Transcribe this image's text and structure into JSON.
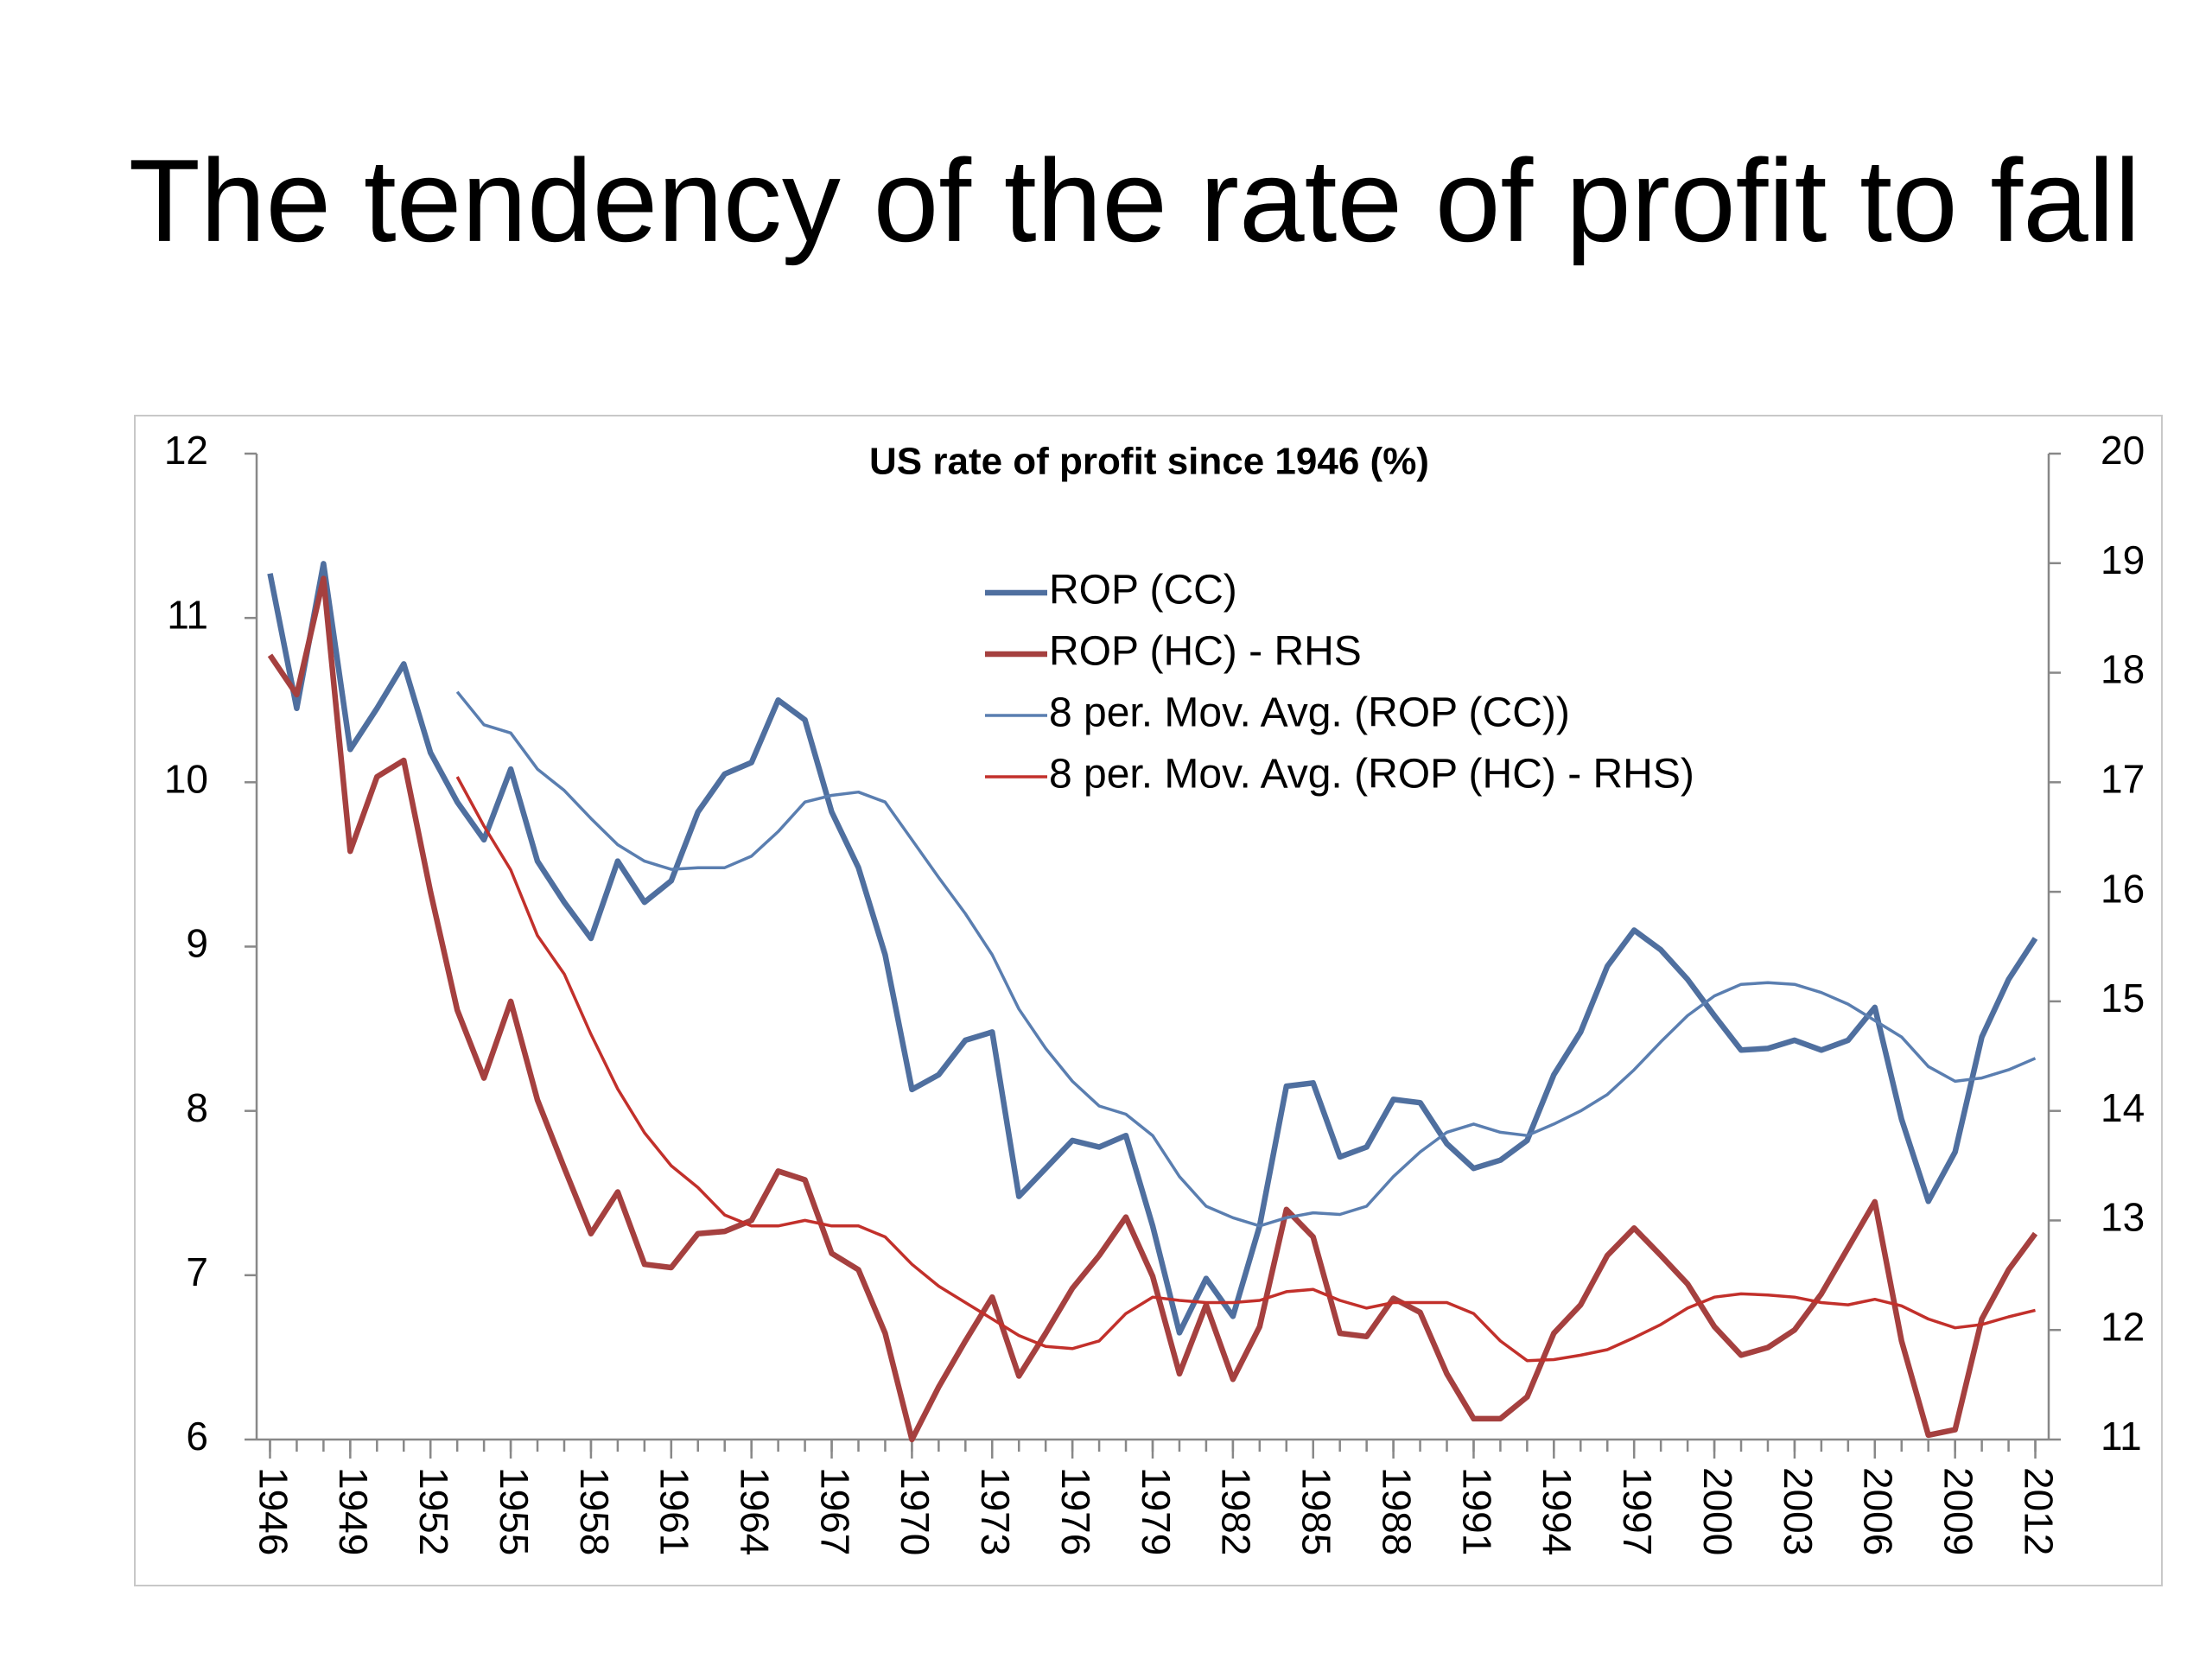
{
  "slide_title": "The tendency of the rate of profit to fall",
  "chart_data": {
    "type": "line",
    "title": "US rate of profit since 1946 (%)",
    "x": [
      1946,
      1947,
      1948,
      1949,
      1950,
      1951,
      1952,
      1953,
      1954,
      1955,
      1956,
      1957,
      1958,
      1959,
      1960,
      1961,
      1962,
      1963,
      1964,
      1965,
      1966,
      1967,
      1968,
      1969,
      1970,
      1971,
      1972,
      1973,
      1974,
      1975,
      1976,
      1977,
      1978,
      1979,
      1980,
      1981,
      1982,
      1983,
      1984,
      1985,
      1986,
      1987,
      1988,
      1989,
      1990,
      1991,
      1992,
      1993,
      1994,
      1995,
      1996,
      1997,
      1998,
      1999,
      2000,
      2001,
      2002,
      2003,
      2004,
      2005,
      2006,
      2007,
      2008,
      2009,
      2010,
      2011,
      2012
    ],
    "xlim": [
      1945.5,
      2012.5
    ],
    "xticks": [
      1946,
      1949,
      1952,
      1955,
      1958,
      1961,
      1964,
      1967,
      1970,
      1973,
      1976,
      1979,
      1982,
      1985,
      1988,
      1991,
      1994,
      1997,
      2000,
      2003,
      2006,
      2009,
      2012
    ],
    "ylim": [
      6,
      12
    ],
    "yticks": [
      6,
      7,
      8,
      9,
      10,
      11,
      12
    ],
    "y2lim": [
      11,
      20
    ],
    "y2ticks": [
      11,
      12,
      13,
      14,
      15,
      16,
      17,
      18,
      19,
      20
    ],
    "grid": false,
    "legend": "top",
    "series": [
      {
        "name": "ROP (CC)",
        "color": "#4f6f9f",
        "width": "thick",
        "axis": "y",
        "values": [
          11.27,
          10.45,
          11.33,
          10.2,
          10.45,
          10.72,
          10.18,
          9.88,
          9.65,
          10.08,
          9.52,
          9.27,
          9.05,
          9.52,
          9.27,
          9.4,
          9.82,
          10.05,
          10.12,
          10.5,
          10.38,
          9.82,
          9.48,
          8.95,
          8.13,
          8.22,
          8.43,
          8.48,
          7.48,
          7.65,
          7.82,
          7.78,
          7.85,
          7.3,
          6.65,
          6.98,
          6.75,
          7.3,
          8.15,
          8.17,
          7.72,
          7.78,
          8.07,
          8.05,
          7.8,
          7.65,
          7.7,
          7.82,
          8.22,
          8.48,
          8.88,
          9.1,
          8.98,
          8.8,
          8.58,
          8.37,
          8.38,
          8.43,
          8.37,
          8.43,
          8.63,
          7.95,
          7.45,
          7.75,
          8.45,
          8.8,
          9.05
        ]
      },
      {
        "name": "ROP (HC) - RHS",
        "color": "#a5403f",
        "width": "thick",
        "axis": "y2",
        "values": [
          18.16,
          17.8,
          18.86,
          16.37,
          17.05,
          17.2,
          16.0,
          14.92,
          14.3,
          15.0,
          14.1,
          13.48,
          12.88,
          13.26,
          12.6,
          12.57,
          12.88,
          12.9,
          13.0,
          13.45,
          13.37,
          12.7,
          12.55,
          11.97,
          11.0,
          11.48,
          11.9,
          12.3,
          11.58,
          11.97,
          12.38,
          12.68,
          13.03,
          12.49,
          11.6,
          12.23,
          11.55,
          12.03,
          13.1,
          12.85,
          11.97,
          11.94,
          12.29,
          12.16,
          11.6,
          11.19,
          11.19,
          11.39,
          11.97,
          12.23,
          12.68,
          12.93,
          12.68,
          12.42,
          12.03,
          11.77,
          11.84,
          12.0,
          12.33,
          12.75,
          13.17,
          11.9,
          11.04,
          11.09,
          12.1,
          12.55,
          12.88
        ]
      },
      {
        "name": "8 per. Mov. Avg. (ROP (CC))",
        "color": "#5a7eb0",
        "width": "thin",
        "axis": "y",
        "values": [
          null,
          null,
          null,
          null,
          null,
          null,
          null,
          10.55,
          10.35,
          10.3,
          10.08,
          9.95,
          9.78,
          9.62,
          9.52,
          9.47,
          9.48,
          9.48,
          9.55,
          9.7,
          9.88,
          9.92,
          9.94,
          9.88,
          9.65,
          9.42,
          9.2,
          8.95,
          8.62,
          8.38,
          8.18,
          8.03,
          7.98,
          7.85,
          7.6,
          7.42,
          7.35,
          7.3,
          7.35,
          7.38,
          7.37,
          7.42,
          7.6,
          7.75,
          7.87,
          7.92,
          7.87,
          7.85,
          7.92,
          8.0,
          8.1,
          8.25,
          8.42,
          8.58,
          8.7,
          8.77,
          8.78,
          8.77,
          8.72,
          8.65,
          8.55,
          8.45,
          8.27,
          8.18,
          8.2,
          8.25,
          8.32
        ]
      },
      {
        "name": "8 per. Mov. Avg. (ROP (HC) - RHS)",
        "color": "#c2302b",
        "width": "thin",
        "axis": "y2",
        "values": [
          null,
          null,
          null,
          null,
          null,
          null,
          null,
          17.05,
          16.6,
          16.2,
          15.6,
          15.25,
          14.7,
          14.2,
          13.8,
          13.5,
          13.3,
          13.05,
          12.95,
          12.95,
          13.0,
          12.95,
          12.95,
          12.85,
          12.6,
          12.4,
          12.25,
          12.1,
          11.95,
          11.85,
          11.83,
          11.9,
          12.15,
          12.3,
          12.27,
          12.25,
          12.25,
          12.27,
          12.35,
          12.37,
          12.27,
          12.2,
          12.25,
          12.25,
          12.25,
          12.15,
          11.9,
          11.72,
          11.73,
          11.77,
          11.82,
          11.93,
          12.05,
          12.2,
          12.3,
          12.33,
          12.32,
          12.3,
          12.25,
          12.23,
          12.28,
          12.22,
          12.1,
          12.02,
          12.05,
          12.12,
          12.18
        ]
      }
    ]
  }
}
